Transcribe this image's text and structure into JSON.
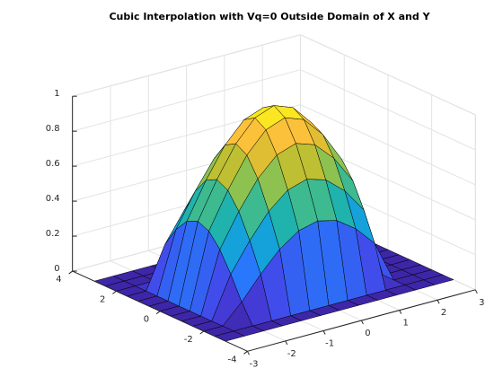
{
  "chart_data": {
    "type": "surface",
    "title": "Cubic Interpolation with Vq=0 Outside Domain of X and Y",
    "x": [
      -3,
      -2.5,
      -2,
      -1.5,
      -1,
      -0.5,
      0,
      0.5,
      1,
      1.5,
      2,
      2.5,
      3
    ],
    "y": [
      -3,
      -2.5,
      -2,
      -1.5,
      -1,
      -0.5,
      0,
      0.5,
      1,
      1.5,
      2,
      2.5,
      3
    ],
    "z": [
      [
        0,
        0,
        0,
        0,
        0,
        0,
        0,
        0,
        0,
        0,
        0,
        0,
        0
      ],
      [
        0,
        0,
        0,
        0,
        0,
        0,
        0,
        0,
        0,
        0,
        0,
        0,
        0
      ],
      [
        0,
        0,
        0.109,
        0.239,
        0.352,
        0.428,
        0.455,
        0.428,
        0.352,
        0.239,
        0,
        0,
        0
      ],
      [
        0,
        0,
        0.239,
        0.402,
        0.54,
        0.632,
        0.665,
        0.632,
        0.54,
        0.402,
        0,
        0,
        0
      ],
      [
        0,
        0,
        0.352,
        0.54,
        0.698,
        0.804,
        0.841,
        0.804,
        0.698,
        0.54,
        0,
        0,
        0
      ],
      [
        0,
        0,
        0.428,
        0.632,
        0.804,
        0.919,
        0.959,
        0.919,
        0.804,
        0.632,
        0,
        0,
        0
      ],
      [
        0,
        0,
        0.455,
        0.665,
        0.841,
        0.959,
        1,
        0.959,
        0.841,
        0.665,
        0,
        0,
        0
      ],
      [
        0,
        0,
        0.428,
        0.632,
        0.804,
        0.919,
        0.959,
        0.919,
        0.804,
        0.632,
        0,
        0,
        0
      ],
      [
        0,
        0,
        0.352,
        0.54,
        0.698,
        0.804,
        0.841,
        0.804,
        0.698,
        0.54,
        0,
        0,
        0
      ],
      [
        0,
        0,
        0.239,
        0.402,
        0.54,
        0.632,
        0.665,
        0.632,
        0.54,
        0.402,
        0,
        0,
        0
      ],
      [
        0,
        0,
        0,
        0,
        0,
        0,
        0,
        0,
        0,
        0,
        0,
        0,
        0
      ],
      [
        0,
        0,
        0,
        0,
        0,
        0,
        0,
        0,
        0,
        0,
        0,
        0,
        0
      ],
      [
        0,
        0,
        0,
        0,
        0,
        0,
        0,
        0,
        0,
        0,
        0,
        0,
        0
      ]
    ],
    "xlim": [
      -3,
      3
    ],
    "ylim": [
      -4,
      4
    ],
    "zlim": [
      0,
      1
    ],
    "xticks": [
      -3,
      -2,
      -1,
      0,
      1,
      2,
      3
    ],
    "yticks": [
      -4,
      -2,
      0,
      2,
      4
    ],
    "zticks": [
      0,
      0.2,
      0.4,
      0.6,
      0.8,
      1
    ],
    "grid": true
  }
}
